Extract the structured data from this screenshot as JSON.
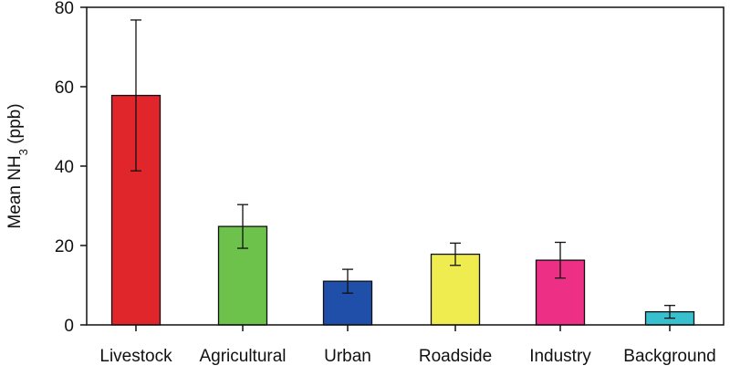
{
  "chart_data": {
    "type": "bar",
    "title": "",
    "xlabel": "",
    "ylabel": {
      "prefix": "Mean NH",
      "subscript": "3",
      "suffix": " (ppb)"
    },
    "categories": [
      "Livestock",
      "Agricultural",
      "Urban",
      "Roadside",
      "Industry",
      "Background"
    ],
    "values": [
      57.8,
      24.8,
      11.0,
      17.8,
      16.3,
      3.3
    ],
    "errors": [
      19.0,
      5.5,
      3.0,
      2.8,
      4.5,
      1.6
    ],
    "colors": [
      "#e0262b",
      "#6cc24a",
      "#1f4fa8",
      "#eeec4f",
      "#ee2f86",
      "#38c0cf"
    ],
    "ylim": [
      0,
      80
    ],
    "yticks": [
      0,
      20,
      40,
      60,
      80
    ],
    "grid": false,
    "legend": "none"
  }
}
